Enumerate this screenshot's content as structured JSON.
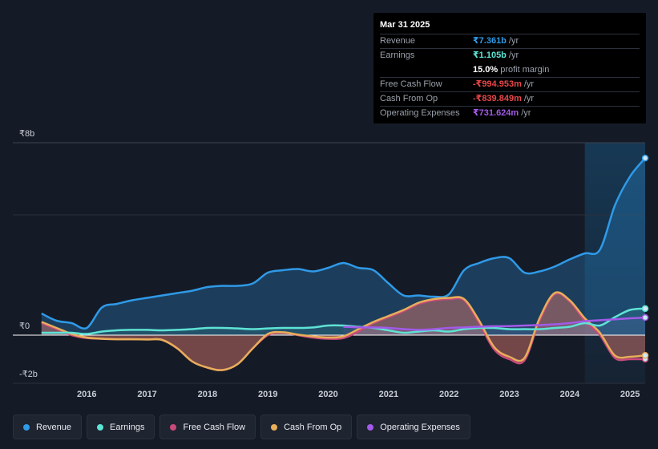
{
  "colors": {
    "revenue": "#2f9ae8",
    "earnings": "#5ee3d5",
    "free_cash_flow": "#c84a7a",
    "cash_from_op": "#e8ae5a",
    "operating_expenses": "#a25ae8",
    "highlight": "#1a3a55"
  },
  "tooltip": {
    "date": "Mar 31 2025",
    "rows": [
      {
        "label": "Revenue",
        "value": "₹7.361b",
        "unit": "/yr",
        "color": "#2f9ae8"
      },
      {
        "label": "Earnings",
        "value": "₹1.105b",
        "unit": "/yr",
        "color": "#5ee3d5"
      },
      {
        "label": "",
        "value": "15.0%",
        "unit": "profit margin",
        "color": "#ffffff"
      },
      {
        "label": "Free Cash Flow",
        "value": "-₹994.953m",
        "unit": "/yr",
        "color": "#e8474a"
      },
      {
        "label": "Cash From Op",
        "value": "-₹839.849m",
        "unit": "/yr",
        "color": "#e8474a"
      },
      {
        "label": "Operating Expenses",
        "value": "₹731.624m",
        "unit": "/yr",
        "color": "#a25ae8"
      }
    ]
  },
  "chart_data": {
    "type": "area",
    "title": "",
    "xlabel": "",
    "ylabel": "",
    "xlim": [
      2015.2,
      2025.25
    ],
    "ylim": [
      -2,
      8
    ],
    "y_labels": [
      {
        "value": 8,
        "text": "₹8b"
      },
      {
        "value": 0,
        "text": "₹0"
      },
      {
        "value": -2,
        "text": "-₹2b"
      }
    ],
    "x_ticks": [
      {
        "value": 2016,
        "text": "2016"
      },
      {
        "value": 2017,
        "text": "2017"
      },
      {
        "value": 2018,
        "text": "2018"
      },
      {
        "value": 2019,
        "text": "2019"
      },
      {
        "value": 2020,
        "text": "2020"
      },
      {
        "value": 2021,
        "text": "2021"
      },
      {
        "value": 2022,
        "text": "2022"
      },
      {
        "value": 2023,
        "text": "2023"
      },
      {
        "value": 2024,
        "text": "2024"
      },
      {
        "value": 2025,
        "text": "2025"
      }
    ],
    "highlight_from": 2024.25,
    "series": [
      {
        "name": "Revenue",
        "key": "revenue",
        "x": [
          2015.25,
          2015.5,
          2015.75,
          2016.0,
          2016.25,
          2016.5,
          2016.75,
          2017.0,
          2017.25,
          2017.5,
          2017.75,
          2018.0,
          2018.25,
          2018.5,
          2018.75,
          2019.0,
          2019.25,
          2019.5,
          2019.75,
          2020.0,
          2020.25,
          2020.5,
          2020.75,
          2021.0,
          2021.25,
          2021.5,
          2021.75,
          2022.0,
          2022.25,
          2022.5,
          2022.75,
          2023.0,
          2023.25,
          2023.5,
          2023.75,
          2024.0,
          2024.25,
          2024.5,
          2024.75,
          2025.0,
          2025.25
        ],
        "values": [
          0.9,
          0.6,
          0.5,
          0.3,
          1.15,
          1.3,
          1.45,
          1.55,
          1.65,
          1.75,
          1.85,
          2.0,
          2.05,
          2.05,
          2.15,
          2.6,
          2.7,
          2.75,
          2.65,
          2.8,
          3.0,
          2.8,
          2.7,
          2.15,
          1.65,
          1.65,
          1.6,
          1.7,
          2.7,
          3.0,
          3.2,
          3.2,
          2.6,
          2.65,
          2.85,
          3.15,
          3.4,
          3.55,
          5.4,
          6.6,
          7.361
        ]
      },
      {
        "name": "Earnings",
        "key": "earnings",
        "x": [
          2015.25,
          2015.5,
          2015.75,
          2016.0,
          2016.25,
          2016.5,
          2016.75,
          2017.0,
          2017.25,
          2017.5,
          2017.75,
          2018.0,
          2018.25,
          2018.5,
          2018.75,
          2019.0,
          2019.25,
          2019.5,
          2019.75,
          2020.0,
          2020.25,
          2020.5,
          2020.75,
          2021.0,
          2021.25,
          2021.5,
          2021.75,
          2022.0,
          2022.25,
          2022.5,
          2022.75,
          2023.0,
          2023.25,
          2023.5,
          2023.75,
          2024.0,
          2024.25,
          2024.5,
          2024.75,
          2025.0,
          2025.25
        ],
        "values": [
          0.1,
          0.1,
          0.1,
          0.05,
          0.15,
          0.2,
          0.22,
          0.22,
          0.2,
          0.22,
          0.25,
          0.3,
          0.3,
          0.28,
          0.25,
          0.28,
          0.3,
          0.3,
          0.32,
          0.4,
          0.4,
          0.35,
          0.3,
          0.2,
          0.1,
          0.15,
          0.2,
          0.15,
          0.25,
          0.3,
          0.3,
          0.25,
          0.25,
          0.25,
          0.3,
          0.35,
          0.5,
          0.4,
          0.75,
          1.05,
          1.105
        ]
      },
      {
        "name": "Free Cash Flow",
        "key": "free_cash_flow",
        "x": [
          2015.25,
          2015.5,
          2015.75,
          2016.0,
          2016.25,
          2016.5,
          2016.75,
          2017.0,
          2017.25,
          2017.5,
          2017.75,
          2018.0,
          2018.25,
          2018.5,
          2018.75,
          2019.0,
          2019.25,
          2019.5,
          2019.75,
          2020.0,
          2020.25,
          2020.5,
          2020.75,
          2021.0,
          2021.25,
          2021.5,
          2021.75,
          2022.0,
          2022.25,
          2022.5,
          2022.75,
          2023.0,
          2023.25,
          2023.5,
          2023.75,
          2024.0,
          2024.25,
          2024.5,
          2024.75,
          2025.0,
          2025.25
        ],
        "values": [
          0.5,
          0.25,
          0.0,
          -0.12,
          -0.15,
          -0.17,
          -0.17,
          -0.18,
          -0.2,
          -0.55,
          -1.1,
          -1.35,
          -1.45,
          -1.2,
          -0.55,
          0.0,
          0.1,
          0.0,
          -0.1,
          -0.15,
          -0.12,
          0.15,
          0.5,
          0.75,
          1.0,
          1.3,
          1.45,
          1.5,
          1.45,
          0.5,
          -0.6,
          -1.0,
          -1.05,
          0.6,
          1.7,
          1.4,
          0.6,
          0.0,
          -0.95,
          -1.0,
          -0.995
        ]
      },
      {
        "name": "Cash From Op",
        "key": "cash_from_op",
        "x": [
          2015.25,
          2015.5,
          2015.75,
          2016.0,
          2016.25,
          2016.5,
          2016.75,
          2017.0,
          2017.25,
          2017.5,
          2017.75,
          2018.0,
          2018.25,
          2018.5,
          2018.75,
          2019.0,
          2019.25,
          2019.5,
          2019.75,
          2020.0,
          2020.25,
          2020.5,
          2020.75,
          2021.0,
          2021.25,
          2021.5,
          2021.75,
          2022.0,
          2022.25,
          2022.5,
          2022.75,
          2023.0,
          2023.25,
          2023.5,
          2023.75,
          2024.0,
          2024.25,
          2024.5,
          2024.75,
          2025.0,
          2025.25
        ],
        "values": [
          0.55,
          0.3,
          0.05,
          -0.1,
          -0.15,
          -0.17,
          -0.17,
          -0.18,
          -0.2,
          -0.55,
          -1.1,
          -1.35,
          -1.45,
          -1.2,
          -0.55,
          0.05,
          0.12,
          0.02,
          -0.05,
          -0.1,
          -0.05,
          0.25,
          0.55,
          0.8,
          1.05,
          1.35,
          1.5,
          1.55,
          1.5,
          0.6,
          -0.5,
          -0.9,
          -0.95,
          0.7,
          1.75,
          1.45,
          0.7,
          0.1,
          -0.85,
          -0.9,
          -0.84
        ]
      },
      {
        "name": "Operating Expenses",
        "key": "operating_expenses",
        "x": [
          2020.25,
          2020.5,
          2020.75,
          2021.0,
          2021.25,
          2021.5,
          2021.75,
          2022.0,
          2022.25,
          2022.5,
          2022.75,
          2023.0,
          2023.25,
          2023.5,
          2023.75,
          2024.0,
          2024.25,
          2024.5,
          2024.75,
          2025.0,
          2025.25
        ],
        "values": [
          0.35,
          0.33,
          0.32,
          0.3,
          0.25,
          0.22,
          0.25,
          0.3,
          0.32,
          0.35,
          0.37,
          0.38,
          0.4,
          0.42,
          0.45,
          0.5,
          0.58,
          0.62,
          0.66,
          0.7,
          0.732
        ]
      }
    ]
  },
  "legend": [
    {
      "label": "Revenue",
      "key": "revenue"
    },
    {
      "label": "Earnings",
      "key": "earnings"
    },
    {
      "label": "Free Cash Flow",
      "key": "free_cash_flow"
    },
    {
      "label": "Cash From Op",
      "key": "cash_from_op"
    },
    {
      "label": "Operating Expenses",
      "key": "operating_expenses"
    }
  ]
}
